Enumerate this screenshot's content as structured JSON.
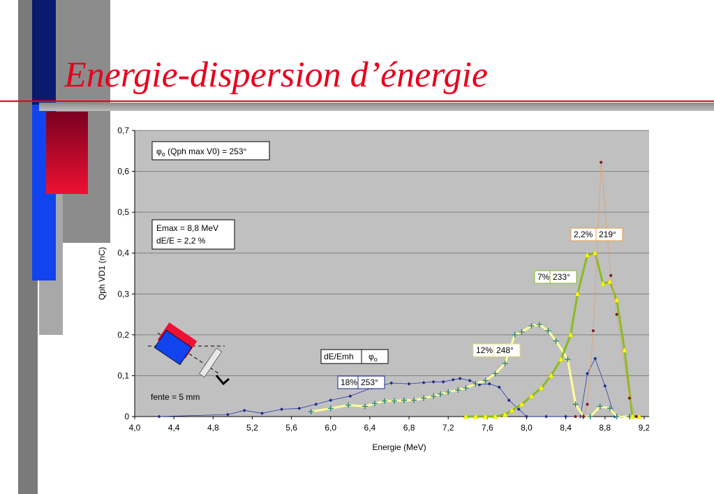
{
  "slide": {
    "title": "Energie-dispersion d’énergie",
    "title_color": "#e8001c"
  },
  "colors": {
    "dark_gray": "#7a7a7a",
    "mid_gray": "#9a9a9a",
    "light_gray": "#c4c4c4",
    "navy": "#0a1a6e",
    "blue": "#1144ee",
    "red": "#ee1133",
    "plot_bg": "#c0c0c0"
  },
  "annotations": {
    "phi_label_symbol": "φ",
    "phi_label_sub": "o",
    "phi_label_rest": " (Qph max V0) = 253°",
    "emax": "Emax = 8,8 MeV",
    "dEE": "dE/E = 2,2 %",
    "table_header_left": "dE/Emh",
    "table_header_symbol": "φ",
    "table_header_sub": "o",
    "fente": "fente = 5 mm",
    "boxes": [
      {
        "pct": "18%",
        "phi": "253°",
        "color": "#1a2a8a"
      },
      {
        "pct": "12%",
        "phi": "248°",
        "color": "#e8e070"
      },
      {
        "pct": "7%",
        "phi": "233°",
        "color": "#88bb22"
      },
      {
        "pct": "2,2%",
        "phi": "219°",
        "color": "#e0a040"
      }
    ]
  },
  "chart_data": {
    "type": "line",
    "xlabel": "Energie (MeV)",
    "ylabel": "Qph VD1 (nC)",
    "xlim": [
      4.0,
      9.4
    ],
    "ylim": [
      0,
      0.7
    ],
    "x_ticks": [
      "4,0",
      "4,4",
      "4,8",
      "5,2",
      "5,6",
      "6,0",
      "6,4",
      "6,8",
      "7,2",
      "7,6",
      "8,0",
      "8,4",
      "8,8",
      "9,2"
    ],
    "y_ticks": [
      "0",
      "0,1",
      "0,2",
      "0,3",
      "0,4",
      "0,5",
      "0,6",
      "0,7"
    ],
    "grid": "horizontal",
    "series": [
      {
        "marker": "diamond",
        "color": "#1a2a8a",
        "line": "#2a3ab0",
        "line_width": 0.8,
        "points": [
          [
            4.25,
            0.0
          ],
          [
            4.95,
            0.005
          ],
          [
            5.12,
            0.015
          ],
          [
            5.3,
            0.008
          ],
          [
            5.5,
            0.018
          ],
          [
            5.68,
            0.02
          ],
          [
            5.85,
            0.03
          ],
          [
            6.0,
            0.04
          ],
          [
            6.2,
            0.05
          ],
          [
            6.42,
            0.07
          ],
          [
            6.62,
            0.082
          ],
          [
            6.8,
            0.08
          ],
          [
            6.95,
            0.083
          ],
          [
            7.05,
            0.085
          ],
          [
            7.15,
            0.085
          ],
          [
            7.25,
            0.09
          ],
          [
            7.32,
            0.093
          ],
          [
            7.42,
            0.088
          ],
          [
            7.52,
            0.078
          ],
          [
            7.62,
            0.08
          ],
          [
            7.72,
            0.072
          ],
          [
            7.82,
            0.04
          ],
          [
            7.92,
            0.018
          ],
          [
            8.0,
            0.0
          ],
          [
            8.2,
            0.0
          ],
          [
            8.4,
            0.0
          ],
          [
            8.55,
            0.0
          ],
          [
            8.62,
            0.105
          ],
          [
            8.7,
            0.142
          ],
          [
            8.8,
            0.075
          ],
          [
            8.9,
            0.0
          ],
          [
            8.97,
            0.0
          ]
        ]
      },
      {
        "marker": "plus",
        "color": "#1a7a7a",
        "line": "#ffff99",
        "line_width": 3,
        "points": [
          [
            5.8,
            0.012
          ],
          [
            6.0,
            0.02
          ],
          [
            6.18,
            0.028
          ],
          [
            6.35,
            0.025
          ],
          [
            6.45,
            0.032
          ],
          [
            6.55,
            0.038
          ],
          [
            6.65,
            0.038
          ],
          [
            6.75,
            0.04
          ],
          [
            6.85,
            0.04
          ],
          [
            6.95,
            0.045
          ],
          [
            7.05,
            0.05
          ],
          [
            7.12,
            0.055
          ],
          [
            7.2,
            0.06
          ],
          [
            7.3,
            0.065
          ],
          [
            7.38,
            0.07
          ],
          [
            7.48,
            0.08
          ],
          [
            7.58,
            0.088
          ],
          [
            7.68,
            0.105
          ],
          [
            7.78,
            0.13
          ],
          [
            7.88,
            0.2
          ],
          [
            7.95,
            0.207
          ],
          [
            8.05,
            0.222
          ],
          [
            8.13,
            0.225
          ],
          [
            8.22,
            0.21
          ],
          [
            8.3,
            0.185
          ],
          [
            8.42,
            0.14
          ],
          [
            8.5,
            0.03
          ],
          [
            8.58,
            0.0
          ],
          [
            8.65,
            0.0
          ],
          [
            8.75,
            0.025
          ],
          [
            8.85,
            0.02
          ],
          [
            8.92,
            0.0
          ],
          [
            9.05,
            0.0
          ]
        ]
      },
      {
        "marker": "triangle",
        "color": "#ffff00",
        "line": "#88bb22",
        "line_width": 3,
        "points": [
          [
            7.38,
            0.0
          ],
          [
            7.48,
            0.0
          ],
          [
            7.58,
            0.0
          ],
          [
            7.68,
            0.0
          ],
          [
            7.78,
            0.005
          ],
          [
            7.85,
            0.015
          ],
          [
            7.95,
            0.03
          ],
          [
            8.05,
            0.05
          ],
          [
            8.15,
            0.07
          ],
          [
            8.25,
            0.1
          ],
          [
            8.35,
            0.14
          ],
          [
            8.45,
            0.2
          ],
          [
            8.52,
            0.3
          ],
          [
            8.62,
            0.395
          ],
          [
            8.7,
            0.4
          ],
          [
            8.78,
            0.325
          ],
          [
            8.85,
            0.33
          ],
          [
            8.92,
            0.285
          ],
          [
            9.0,
            0.162
          ],
          [
            9.08,
            0.0
          ],
          [
            9.15,
            0.0
          ]
        ]
      },
      {
        "marker": "circle",
        "color": "#7a1a1a",
        "line": "#e0a070",
        "line_width": 0.8,
        "points": [
          [
            8.5,
            0.0
          ],
          [
            8.58,
            0.0
          ],
          [
            8.62,
            0.03
          ],
          [
            8.68,
            0.21
          ],
          [
            8.76,
            0.622
          ],
          [
            8.86,
            0.345
          ],
          [
            8.92,
            0.25
          ],
          [
            9.05,
            0.045
          ],
          [
            9.12,
            0.0
          ]
        ]
      }
    ]
  }
}
